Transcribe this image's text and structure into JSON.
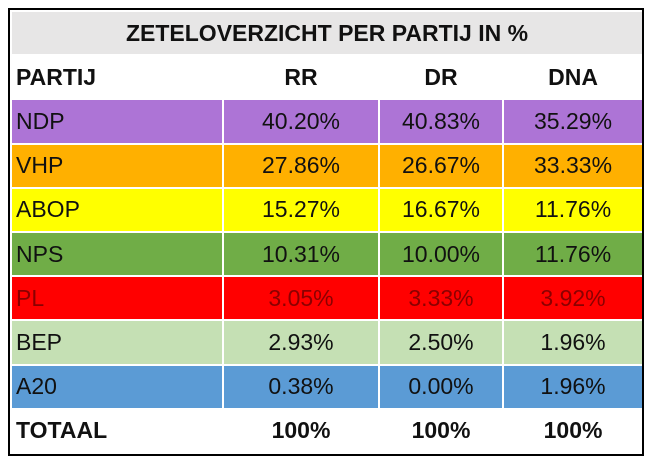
{
  "table": {
    "title": "ZETELOVERZICHT PER PARTIJ IN %",
    "header": [
      "PARTIJ",
      "RR",
      "DR",
      "DNA"
    ],
    "rows": [
      {
        "cells": [
          "NDP",
          "40.20%",
          "40.83%",
          "35.29%"
        ],
        "color": "#ad74d6"
      },
      {
        "cells": [
          "VHP",
          "27.86%",
          "26.67%",
          "33.33%"
        ],
        "color": "#ffb000"
      },
      {
        "cells": [
          "ABOP",
          "15.27%",
          "16.67%",
          "11.76%"
        ],
        "color": "#ffff00"
      },
      {
        "cells": [
          "NPS",
          "10.31%",
          "10.00%",
          "11.76%"
        ],
        "color": "#70ad47"
      },
      {
        "cells": [
          "PL",
          "3.05%",
          "3.33%",
          "3.92%"
        ],
        "color": "#ff0000"
      },
      {
        "cells": [
          "BEP",
          "2.93%",
          "2.50%",
          "1.96%"
        ],
        "color": "#c5e0b4"
      },
      {
        "cells": [
          "A20",
          "0.38%",
          "0.00%",
          "1.96%"
        ],
        "color": "#5b9bd5"
      }
    ],
    "total": [
      "TOTAAL",
      "100%",
      "100%",
      "100%"
    ]
  }
}
